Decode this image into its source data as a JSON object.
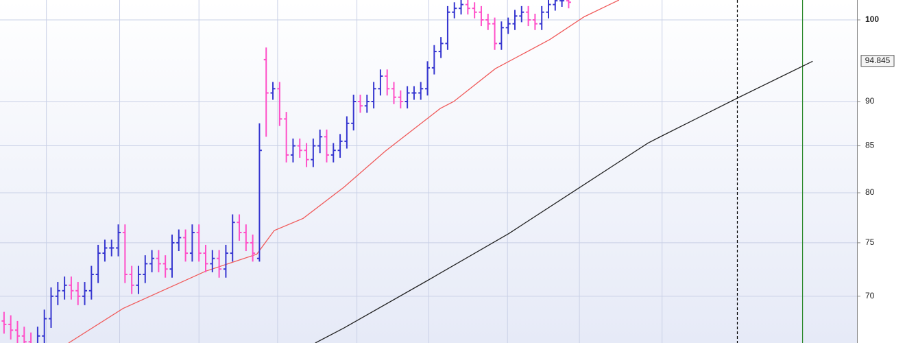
{
  "chart_data": {
    "type": "ohlc",
    "log_scale": true,
    "grid": true,
    "up_color": "#3636d0",
    "down_color": "#ff4fc8",
    "xlim": [
      -0.6,
      126.9
    ],
    "ylim": [
      65.9,
      102.6
    ],
    "yticks": [
      70,
      75,
      80,
      85,
      90,
      100
    ],
    "bold_tick": 100,
    "xgrid": [
      6.3,
      17.2,
      29,
      40.7,
      52.5,
      63.2,
      74.9,
      85.6,
      97.9
    ],
    "markers": [
      {
        "x": 109.1,
        "color": "#000000",
        "dashed": true
      },
      {
        "x": 118.8,
        "color": "#2e8b2e",
        "dashed": false
      }
    ],
    "last_value_label": 94.845,
    "open": [
      67.8,
      67.5,
      67,
      66.5,
      66,
      65.5,
      66.5,
      68,
      70,
      70.5,
      71,
      70.5,
      70,
      70.5,
      72,
      74,
      74.5,
      74.5,
      76,
      72,
      71,
      72,
      73,
      73.5,
      73,
      72.5,
      75,
      75.5,
      74,
      76,
      74,
      73,
      73.5,
      72.5,
      74,
      77,
      76,
      75,
      73.5,
      95,
      91,
      91.5,
      88,
      84,
      85,
      84.5,
      83.5,
      85,
      86,
      84,
      84.5,
      85.5,
      87.5,
      90,
      89.5,
      90,
      91.5,
      93,
      91.5,
      90.5,
      90,
      91,
      91,
      91.5,
      94,
      96,
      97,
      101,
      101.5,
      102,
      101.5,
      101,
      100,
      99.5,
      97,
      99,
      99.5,
      100.5,
      101,
      100,
      99.5,
      101,
      102,
      102.5,
      102.5
    ],
    "high": [
      68.6,
      68.3,
      67.8,
      67.3,
      66.8,
      67.3,
      68.8,
      70.8,
      71.3,
      71.8,
      71.8,
      71.3,
      71.3,
      72.8,
      74.8,
      75.3,
      75.3,
      76.8,
      76.8,
      72.8,
      72.8,
      73.8,
      74.3,
      74.3,
      73.8,
      75.8,
      76.3,
      76.3,
      76.8,
      76.8,
      74.8,
      74.3,
      74.3,
      74.8,
      77.8,
      77.8,
      76.8,
      75.8,
      87.5,
      96.5,
      92.3,
      92.3,
      88.8,
      85.8,
      85.8,
      85.3,
      85.8,
      86.8,
      86.8,
      85.3,
      86.3,
      88.3,
      90.8,
      90.8,
      90.8,
      92.3,
      93.8,
      93.8,
      92.3,
      91.3,
      91.8,
      91.8,
      92.3,
      94.8,
      96.8,
      97.8,
      101.8,
      102.3,
      102.8,
      102.8,
      102.3,
      101.8,
      100.8,
      100.3,
      99.8,
      100.3,
      101.3,
      101.8,
      101.8,
      100.8,
      101.8,
      102.8,
      103.3,
      103.3,
      103.3
    ],
    "low": [
      66.7,
      66.2,
      65.7,
      65.2,
      64.7,
      64.7,
      65.7,
      67.2,
      69.2,
      69.7,
      69.7,
      69.2,
      69.2,
      69.7,
      71.2,
      73.2,
      73.7,
      73.7,
      71.2,
      70.2,
      70.2,
      71.2,
      72.2,
      72.2,
      71.7,
      71.7,
      74.2,
      73.2,
      73.2,
      73.2,
      72.2,
      72.2,
      71.7,
      71.7,
      73.2,
      75.2,
      74.2,
      73.2,
      73.2,
      86,
      90.2,
      87.2,
      83.2,
      83.2,
      83.7,
      82.7,
      82.7,
      84.2,
      83.2,
      83.2,
      83.7,
      84.7,
      86.7,
      88.7,
      88.7,
      89.2,
      90.7,
      90.7,
      89.7,
      89.2,
      89.2,
      90.2,
      90.2,
      90.7,
      93.2,
      95.2,
      96.2,
      100.2,
      100.7,
      100.7,
      100.2,
      99.2,
      98.7,
      96.2,
      96.2,
      98.2,
      98.7,
      99.7,
      99.2,
      98.7,
      98.7,
      100.2,
      101.2,
      101.7,
      101.5
    ],
    "close": [
      67.5,
      67,
      66.5,
      66,
      65.5,
      66.5,
      68,
      70,
      70.5,
      71,
      70.5,
      70,
      70.5,
      72,
      74,
      74.5,
      74.5,
      76,
      72,
      71,
      72,
      73,
      73.5,
      73,
      72.5,
      75,
      75.5,
      74,
      76,
      74,
      73,
      73.5,
      72.5,
      74,
      77,
      76,
      75,
      74,
      84.5,
      91,
      91.5,
      88,
      84,
      85,
      84.5,
      83.5,
      85,
      86,
      84,
      84.5,
      85.5,
      87.5,
      90,
      89.5,
      90,
      91.5,
      93,
      91.5,
      90.5,
      90,
      91,
      91,
      91.5,
      94,
      96,
      97,
      101,
      101.5,
      102,
      101.5,
      101,
      100,
      99.5,
      97,
      99,
      99.5,
      100.5,
      101,
      100,
      99.5,
      101,
      102,
      102.5,
      102.5,
      102.3
    ],
    "lines": [
      {
        "color": "#f05a5a",
        "x": [
          9.6,
          17.7,
          30,
          37.6,
          40.2,
          44.5,
          50.6,
          56.7,
          64.9,
          66.9,
          73.1,
          81.2,
          86.3,
          91.5
        ],
        "values": [
          65.9,
          68.9,
          72.3,
          73.9,
          76.2,
          77.4,
          80.6,
          84.4,
          89.2,
          90.0,
          93.9,
          97.5,
          100.4,
          102.6
        ]
      },
      {
        "color": "#222222",
        "x": [
          46.3,
          50.6,
          62.9,
          75.1,
          85.3,
          95.8,
          97.9,
          109.1,
          120.3
        ],
        "values": [
          65.9,
          67.2,
          71.4,
          75.9,
          80.4,
          85.3,
          86.1,
          90.4,
          94.8
        ]
      }
    ]
  }
}
